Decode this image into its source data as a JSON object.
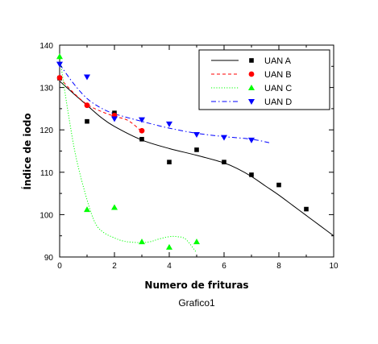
{
  "caption": "Grafico1",
  "chart_data": {
    "type": "scatter",
    "xlabel": "Numero de frituras",
    "ylabel": "Índice de iodo",
    "xlim": [
      0,
      10
    ],
    "ylim": [
      90,
      140
    ],
    "xticks": [
      "0",
      "2",
      "4",
      "6",
      "8",
      "10"
    ],
    "xtick_values": [
      0,
      2,
      4,
      6,
      8,
      10
    ],
    "yticks": [
      "90",
      "100",
      "110",
      "120",
      "130",
      "140"
    ],
    "ytick_values": [
      90,
      100,
      110,
      120,
      130,
      140
    ],
    "legend_position": "top-right",
    "series": [
      {
        "name": "UAN A",
        "marker": "square",
        "color": "#000000",
        "line_style": "solid",
        "x": [
          0,
          1,
          2,
          3,
          4,
          5,
          6,
          7,
          8,
          9
        ],
        "y": [
          132.2,
          122.0,
          124.0,
          117.8,
          112.4,
          115.3,
          112.4,
          109.4,
          107.0,
          101.3
        ],
        "fit_x": [
          0,
          0.5,
          1,
          1.5,
          2,
          3,
          4,
          5,
          6,
          6.5,
          7,
          7.5,
          8,
          8.5,
          9,
          9.5,
          10
        ],
        "fit_y": [
          131.5,
          128.6,
          125.8,
          123.0,
          120.8,
          117.6,
          115.6,
          114.0,
          112.2,
          110.8,
          109.0,
          106.8,
          104.6,
          102.2,
          99.8,
          97.4,
          95.0
        ]
      },
      {
        "name": "UAN B",
        "marker": "circle",
        "color": "#ff0000",
        "line_style": "dashed",
        "x": [
          0,
          1,
          2,
          3
        ],
        "y": [
          132.3,
          125.8,
          123.4,
          119.8
        ],
        "fit_x": [
          0,
          0.5,
          1,
          1.5,
          2,
          2.5,
          3
        ],
        "fit_y": [
          132.3,
          128.8,
          126.0,
          124.4,
          123.2,
          122.2,
          119.6
        ]
      },
      {
        "name": "UAN C",
        "marker": "triangle-up",
        "color": "#00ff00",
        "line_style": "dotted",
        "x": [
          0,
          1,
          2,
          3,
          4,
          5
        ],
        "y": [
          137.3,
          101.2,
          101.7,
          93.6,
          92.3,
          93.6
        ],
        "fit_x": [
          0,
          0.3,
          0.6,
          1,
          1.3,
          1.6,
          2,
          2.3,
          2.6,
          3,
          3.3,
          3.6,
          4,
          4.3,
          4.6,
          5
        ],
        "fit_y": [
          137.3,
          124.5,
          113.5,
          103.5,
          98.0,
          95.8,
          94.5,
          93.8,
          93.5,
          93.4,
          93.6,
          94.2,
          94.8,
          94.8,
          94.2,
          91.0
        ]
      },
      {
        "name": "UAN D",
        "marker": "triangle-down",
        "color": "#0000ff",
        "line_style": "dashdot",
        "x": [
          0,
          1,
          2,
          3,
          4,
          5,
          6,
          7
        ],
        "y": [
          135.5,
          132.5,
          122.6,
          122.4,
          121.4,
          118.9,
          118.2,
          117.6
        ],
        "fit_x": [
          0,
          0.5,
          1,
          1.5,
          2,
          3,
          4,
          5,
          6,
          7,
          7.7
        ],
        "fit_y": [
          135.5,
          131.0,
          127.4,
          125.2,
          123.8,
          122.0,
          120.4,
          119.2,
          118.4,
          117.8,
          116.9
        ]
      }
    ]
  }
}
